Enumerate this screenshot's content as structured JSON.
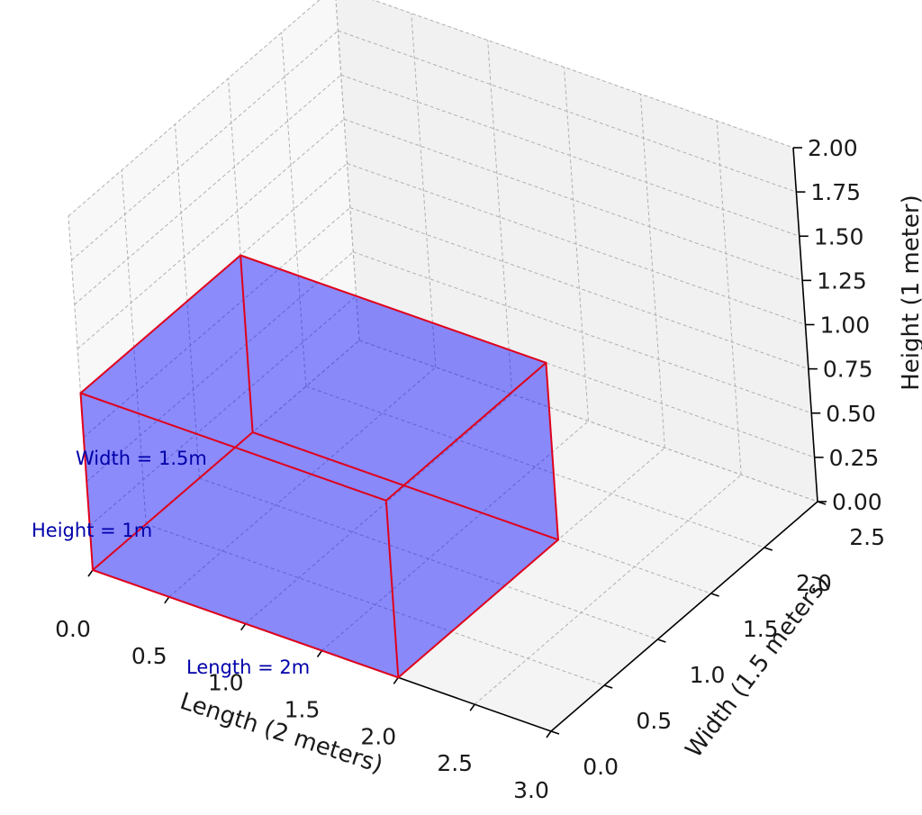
{
  "chart_data": {
    "type": "3d-box",
    "title": "",
    "xlabel": "Length (2 meters)",
    "ylabel": "Width (1.5 meters)",
    "zlabel": "Height (1 meter)",
    "xlim": [
      0,
      3
    ],
    "ylim": [
      0,
      2.5
    ],
    "zlim": [
      0,
      2
    ],
    "xticks": [
      "0.0",
      "0.5",
      "1.0",
      "1.5",
      "2.0",
      "2.5",
      "3.0"
    ],
    "yticks": [
      "0.0",
      "0.5",
      "1.0",
      "1.5",
      "2.0",
      "2.5"
    ],
    "zticks": [
      "0.00",
      "0.25",
      "0.50",
      "0.75",
      "1.00",
      "1.25",
      "1.50",
      "1.75",
      "2.00"
    ],
    "grid": true,
    "box": {
      "length": 2,
      "width": 1.5,
      "height": 1,
      "face_color": "#0000ff",
      "face_alpha": 0.25,
      "edge_color": "#e0001b"
    },
    "annotations": [
      {
        "text": "Length = 2m",
        "color": "#0000aa"
      },
      {
        "text": "Width = 1.5m",
        "color": "#0000aa"
      },
      {
        "text": "Height = 1m",
        "color": "#0000aa"
      }
    ]
  }
}
